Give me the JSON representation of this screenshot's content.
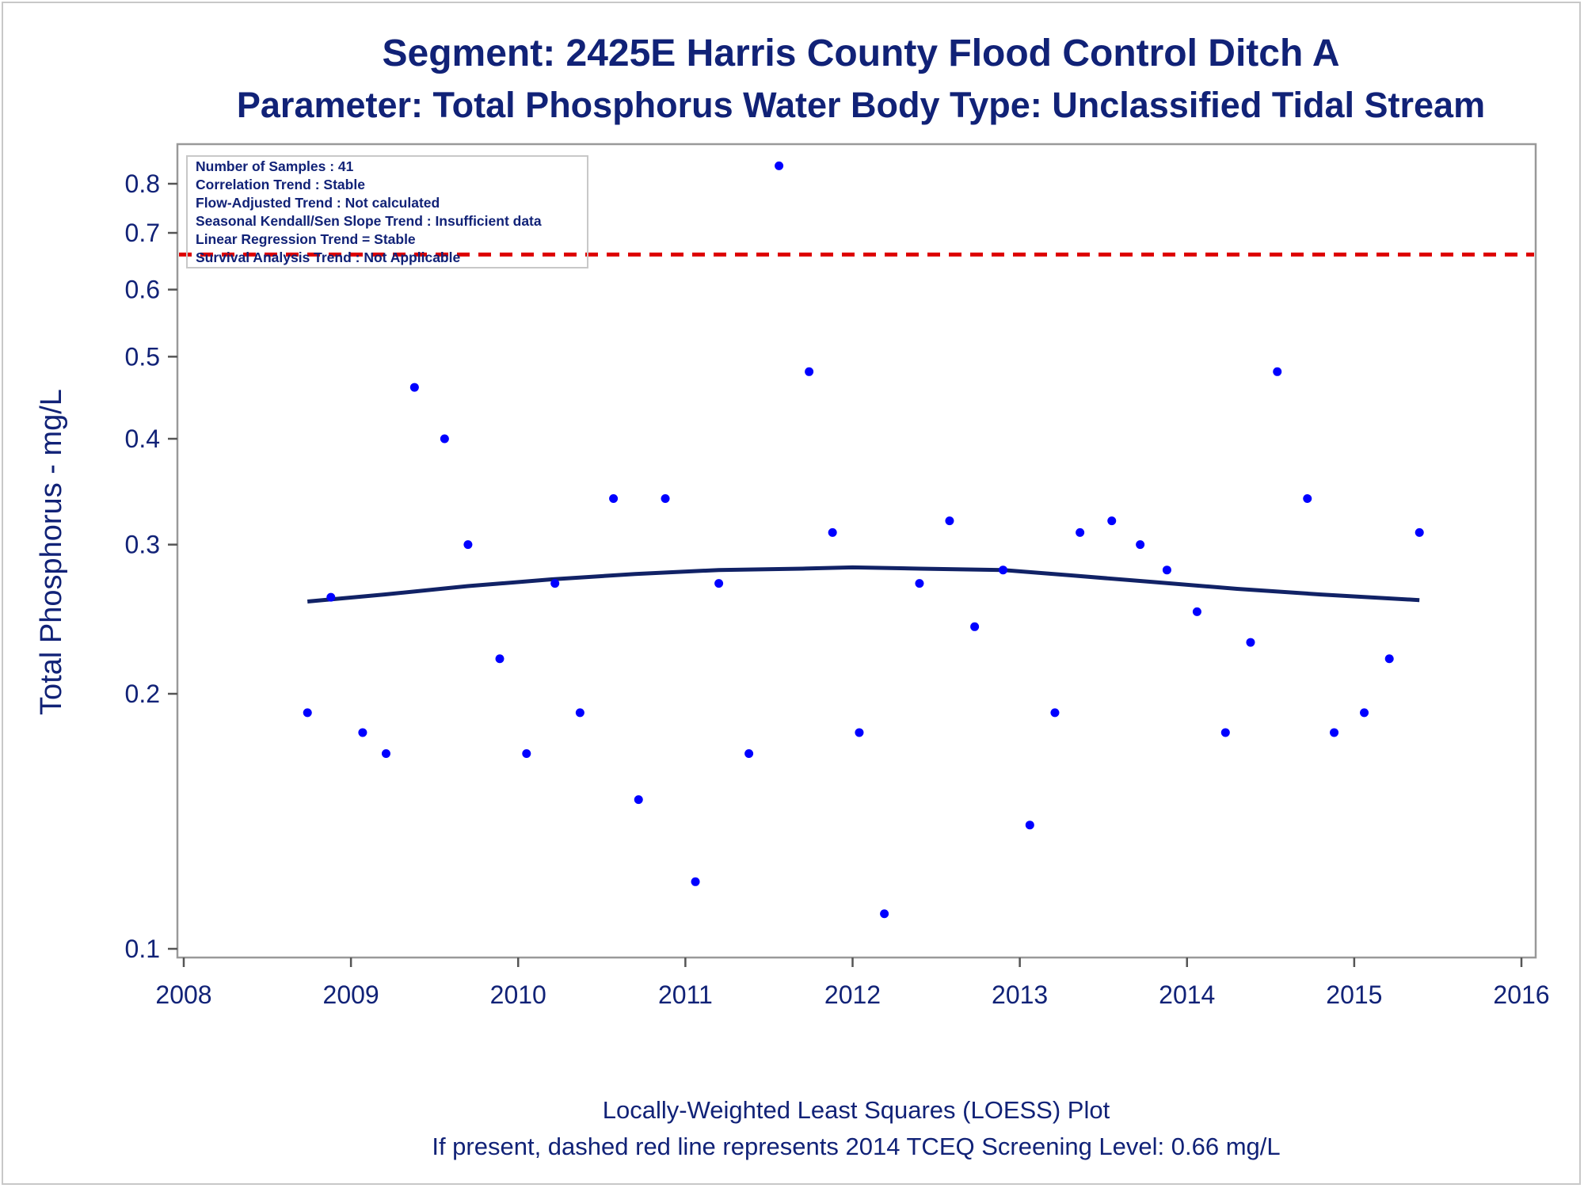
{
  "chart_data": {
    "type": "scatter",
    "title": "Segment: 2425E  Harris County Flood Control Ditch A",
    "subtitle": "Parameter: Total Phosphorus   Water Body Type: Unclassified Tidal Stream",
    "xlabel": "",
    "ylabel": "Total Phosphorus - mg/L",
    "y_scale": "log",
    "xlim": [
      2008,
      2016
    ],
    "ylim": [
      0.1,
      0.85
    ],
    "x_ticks": [
      "2008",
      "2009",
      "2010",
      "2011",
      "2012",
      "2013",
      "2014",
      "2015",
      "2016"
    ],
    "y_ticks": [
      "0.1",
      "0.2",
      "0.3",
      "0.4",
      "0.5",
      "0.6",
      "0.7",
      "0.8"
    ],
    "grid": false,
    "legend_placement": "top-left",
    "stats_box": [
      "Number of Samples : 41",
      "Correlation Trend : Stable",
      "Flow-Adjusted Trend : Not calculated",
      "Seasonal Kendall/Sen Slope Trend : Insufficient data",
      "Linear Regression Trend = Stable",
      "Survival Analysis Trend : Not Applicable"
    ],
    "colors": {
      "points": "#0000ff",
      "loess": "#112266",
      "screening": "#dd0000",
      "text": "#112277"
    },
    "points": [
      {
        "x": 2008.74,
        "y": 0.19
      },
      {
        "x": 2008.88,
        "y": 0.26
      },
      {
        "x": 2009.07,
        "y": 0.18
      },
      {
        "x": 2009.21,
        "y": 0.17
      },
      {
        "x": 2009.38,
        "y": 0.46
      },
      {
        "x": 2009.56,
        "y": 0.4
      },
      {
        "x": 2009.7,
        "y": 0.3
      },
      {
        "x": 2009.89,
        "y": 0.22
      },
      {
        "x": 2010.05,
        "y": 0.17
      },
      {
        "x": 2010.22,
        "y": 0.27
      },
      {
        "x": 2010.37,
        "y": 0.19
      },
      {
        "x": 2010.57,
        "y": 0.34
      },
      {
        "x": 2010.72,
        "y": 0.15
      },
      {
        "x": 2010.88,
        "y": 0.34
      },
      {
        "x": 2011.06,
        "y": 0.12
      },
      {
        "x": 2011.2,
        "y": 0.27
      },
      {
        "x": 2011.38,
        "y": 0.17
      },
      {
        "x": 2011.56,
        "y": 0.84
      },
      {
        "x": 2011.74,
        "y": 0.48
      },
      {
        "x": 2011.88,
        "y": 0.31
      },
      {
        "x": 2012.04,
        "y": 0.18
      },
      {
        "x": 2012.19,
        "y": 0.11
      },
      {
        "x": 2012.4,
        "y": 0.27
      },
      {
        "x": 2012.58,
        "y": 0.32
      },
      {
        "x": 2012.73,
        "y": 0.24
      },
      {
        "x": 2012.9,
        "y": 0.28
      },
      {
        "x": 2013.06,
        "y": 0.14
      },
      {
        "x": 2013.21,
        "y": 0.19
      },
      {
        "x": 2013.36,
        "y": 0.31
      },
      {
        "x": 2013.55,
        "y": 0.32
      },
      {
        "x": 2013.72,
        "y": 0.3
      },
      {
        "x": 2013.88,
        "y": 0.28
      },
      {
        "x": 2014.06,
        "y": 0.25
      },
      {
        "x": 2014.23,
        "y": 0.18
      },
      {
        "x": 2014.38,
        "y": 0.23
      },
      {
        "x": 2014.54,
        "y": 0.48
      },
      {
        "x": 2014.72,
        "y": 0.34
      },
      {
        "x": 2014.88,
        "y": 0.18
      },
      {
        "x": 2015.06,
        "y": 0.19
      },
      {
        "x": 2015.21,
        "y": 0.22
      },
      {
        "x": 2015.39,
        "y": 0.31
      }
    ],
    "loess": [
      {
        "x": 2008.74,
        "y": 0.257
      },
      {
        "x": 2009.2,
        "y": 0.262
      },
      {
        "x": 2009.7,
        "y": 0.268
      },
      {
        "x": 2010.2,
        "y": 0.273
      },
      {
        "x": 2010.7,
        "y": 0.277
      },
      {
        "x": 2011.2,
        "y": 0.28
      },
      {
        "x": 2011.7,
        "y": 0.281
      },
      {
        "x": 2012.0,
        "y": 0.282
      },
      {
        "x": 2012.4,
        "y": 0.281
      },
      {
        "x": 2012.9,
        "y": 0.28
      },
      {
        "x": 2013.3,
        "y": 0.276
      },
      {
        "x": 2013.8,
        "y": 0.271
      },
      {
        "x": 2014.3,
        "y": 0.266
      },
      {
        "x": 2014.8,
        "y": 0.262
      },
      {
        "x": 2015.39,
        "y": 0.258
      }
    ],
    "screening_level": 0.66,
    "footnote_1": "Locally-Weighted Least Squares (LOESS) Plot",
    "footnote_2": "If present, dashed red line represents 2014 TCEQ Screening Level: 0.66 mg/L"
  }
}
